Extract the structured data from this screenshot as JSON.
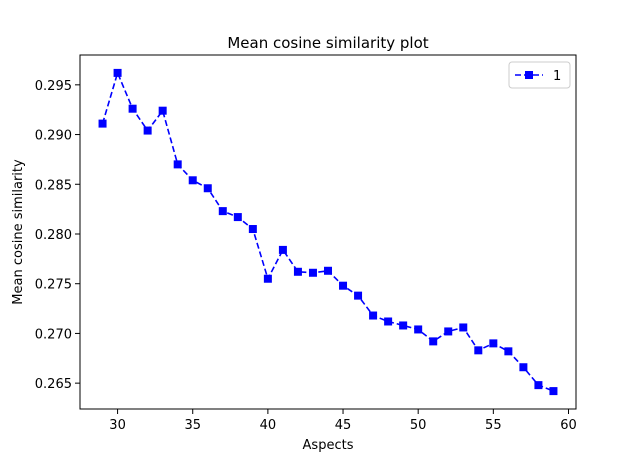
{
  "chart_data": {
    "type": "line",
    "title": "Mean cosine similarity plot",
    "xlabel": "Aspects",
    "ylabel": "Mean cosine similarity",
    "xlim": [
      27.5,
      60.5
    ],
    "ylim": [
      0.2624,
      0.298
    ],
    "xticks": [
      30,
      35,
      40,
      45,
      50,
      55,
      60
    ],
    "xtick_labels": [
      "30",
      "35",
      "40",
      "45",
      "50",
      "55",
      "60"
    ],
    "yticks": [
      0.265,
      0.27,
      0.275,
      0.28,
      0.285,
      0.29,
      0.295
    ],
    "ytick_labels": [
      "0.265",
      "0.270",
      "0.275",
      "0.280",
      "0.285",
      "0.290",
      "0.295"
    ],
    "grid": false,
    "legend_position": "top-right",
    "series": [
      {
        "name": "1",
        "color": "#0000ff",
        "line_style": "dashed",
        "marker": "square",
        "x": [
          29,
          30,
          31,
          32,
          33,
          34,
          35,
          36,
          37,
          38,
          39,
          40,
          41,
          42,
          43,
          44,
          45,
          46,
          47,
          48,
          49,
          50,
          51,
          52,
          53,
          54,
          55,
          56,
          57,
          58,
          59
        ],
        "y": [
          0.2911,
          0.2962,
          0.2926,
          0.2904,
          0.2924,
          0.287,
          0.2854,
          0.2846,
          0.2823,
          0.2817,
          0.2805,
          0.2755,
          0.2784,
          0.2762,
          0.2761,
          0.2763,
          0.2748,
          0.2738,
          0.2718,
          0.2712,
          0.2708,
          0.2704,
          0.2692,
          0.2702,
          0.2706,
          0.2683,
          0.269,
          0.2682,
          0.2666,
          0.2648,
          0.2642
        ]
      }
    ]
  }
}
